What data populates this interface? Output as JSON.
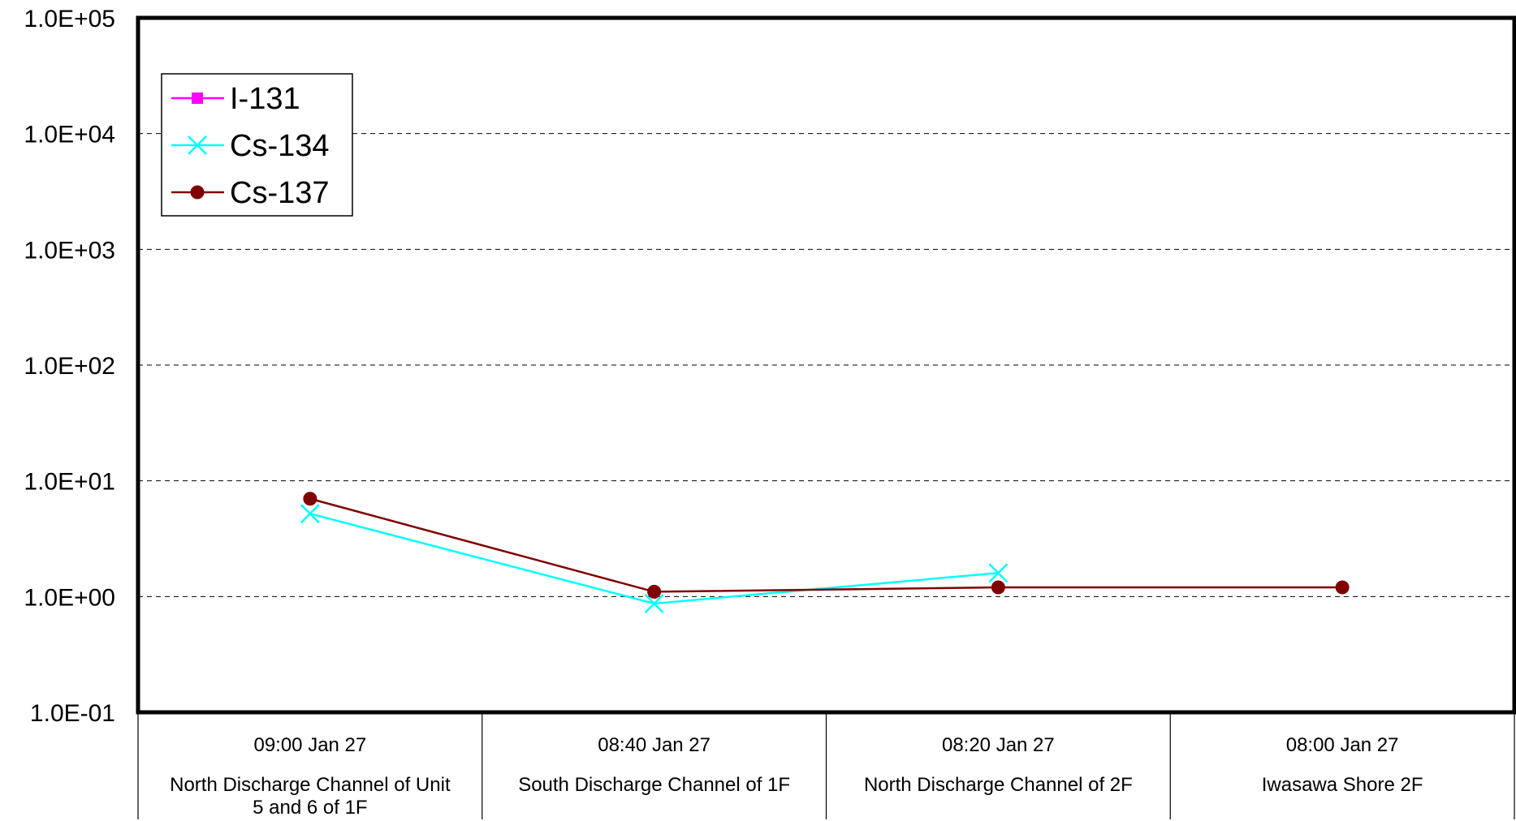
{
  "chart_data": {
    "type": "line",
    "y_scale": "log",
    "ylim": [
      0.1,
      100000
    ],
    "y_ticks": [
      "1.0E-01",
      "1.0E+00",
      "1.0E+01",
      "1.0E+02",
      "1.0E+03",
      "1.0E+04",
      "1.0E+05"
    ],
    "grid": "horizontal dashed",
    "legend_position": "top-left",
    "categories": [
      {
        "time": "09:00 Jan 27",
        "location": "North Discharge Channel of Unit 5 and 6 of 1F"
      },
      {
        "time": "08:40 Jan 27",
        "location": "South Discharge Channel of 1F"
      },
      {
        "time": "08:20 Jan 27",
        "location": "North Discharge Channel of 2F"
      },
      {
        "time": "08:00 Jan 27",
        "location": "Iwasawa Shore 2F"
      }
    ],
    "series": [
      {
        "name": "I-131",
        "color": "#ff00ff",
        "marker": "square",
        "values": [
          null,
          null,
          null,
          null
        ]
      },
      {
        "name": "Cs-134",
        "color": "#00ffff",
        "marker": "x",
        "values": [
          5.2,
          0.87,
          1.6,
          null
        ]
      },
      {
        "name": "Cs-137",
        "color": "#800000",
        "marker": "circle",
        "values": [
          7.0,
          1.1,
          1.2,
          1.2
        ]
      }
    ]
  }
}
